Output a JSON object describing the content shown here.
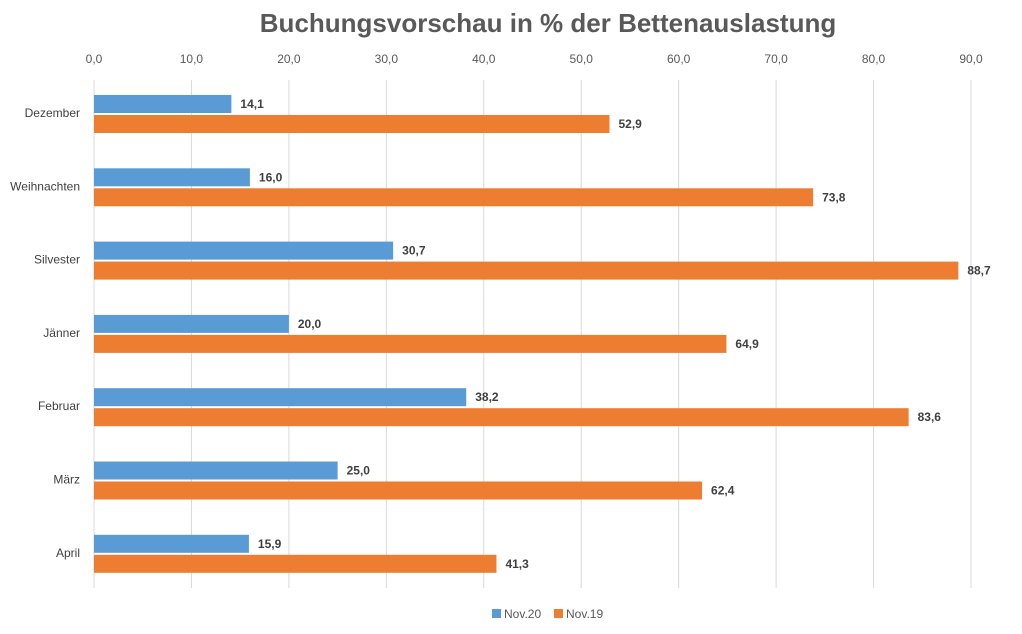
{
  "chart_data": {
    "type": "bar",
    "orientation": "horizontal",
    "title": "Buchungsvorschau in % der Bettenauslastung",
    "categories": [
      "Dezember",
      "Weihnachten",
      "Silvester",
      "Jänner",
      "Februar",
      "März",
      "April"
    ],
    "series": [
      {
        "name": "Nov.20",
        "color": "#5b9bd5",
        "values": [
          14.1,
          16.0,
          30.7,
          20.0,
          38.2,
          25.0,
          15.9
        ],
        "labels": [
          "14,1",
          "16,0",
          "30,7",
          "20,0",
          "38,2",
          "25,0",
          "15,9"
        ]
      },
      {
        "name": "Nov.19",
        "color": "#ed7d31",
        "values": [
          52.9,
          73.8,
          88.7,
          64.9,
          83.6,
          62.4,
          41.3
        ],
        "labels": [
          "52,9",
          "73,8",
          "88,7",
          "64,9",
          "83,6",
          "62,4",
          "41,3"
        ]
      }
    ],
    "xlim": [
      0,
      90
    ],
    "x_ticks": [
      0,
      10,
      20,
      30,
      40,
      50,
      60,
      70,
      80,
      90
    ],
    "x_tick_labels": [
      "0,0",
      "10,0",
      "20,0",
      "30,0",
      "40,0",
      "50,0",
      "60,0",
      "70,0",
      "80,0",
      "90,0"
    ],
    "x_axis_position": "top",
    "grid": true,
    "legend_position": "bottom"
  }
}
